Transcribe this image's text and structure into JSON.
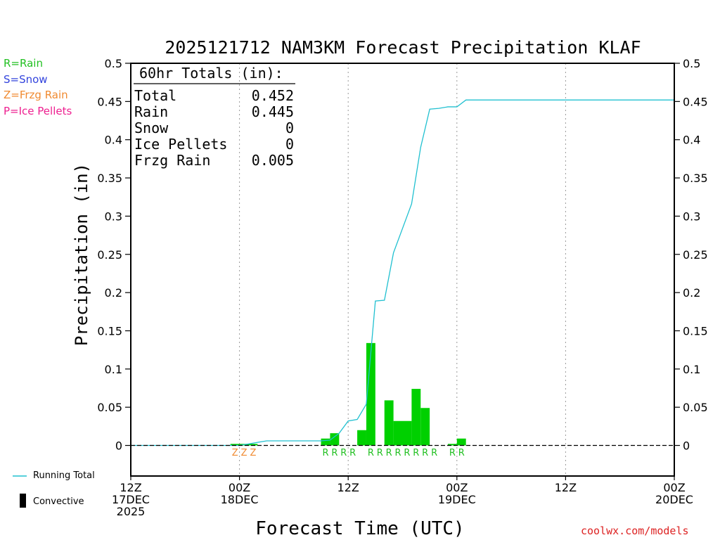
{
  "legend": {
    "rain": {
      "label": "R=Rain",
      "color": "#22c022"
    },
    "snow": {
      "label": "S=Snow",
      "color": "#3344dd"
    },
    "frzg": {
      "label": "Z=Frzg Rain",
      "color": "#f08a30"
    },
    "ice": {
      "label": "P=Ice Pellets",
      "color": "#ee2090"
    }
  },
  "key": {
    "running_total": {
      "label": "Running Total",
      "color": "#20c0d0"
    },
    "convective": {
      "label": "Convective",
      "color": "#000000"
    }
  },
  "credit": "coolwx.com/models",
  "chart_data": {
    "type": "bar",
    "title": "2025121712 NAM3KM Forecast Precipitation KLAF",
    "xlabel": "Forecast Time (UTC)",
    "ylabel": "Precipitation (in)",
    "ylim": [
      -0.04,
      0.5
    ],
    "yticks": [
      0,
      0.05,
      0.1,
      0.15,
      0.2,
      0.25,
      0.3,
      0.35,
      0.4,
      0.45,
      0.5
    ],
    "ytick_labels": [
      "0",
      "0.05",
      "0.1",
      "0.15",
      "0.2",
      "0.25",
      "0.3",
      "0.35",
      "0.4",
      "0.45",
      "0.5"
    ],
    "xlim_hours": [
      0,
      60
    ],
    "xticks": [
      {
        "hour": 0,
        "lines": [
          "12Z",
          "17DEC",
          "2025"
        ]
      },
      {
        "hour": 12,
        "lines": [
          "00Z",
          "18DEC"
        ]
      },
      {
        "hour": 24,
        "lines": [
          "12Z"
        ]
      },
      {
        "hour": 36,
        "lines": [
          "00Z",
          "19DEC"
        ]
      },
      {
        "hour": 48,
        "lines": [
          "12Z"
        ]
      },
      {
        "hour": 60,
        "lines": [
          "00Z",
          "20DEC"
        ]
      }
    ],
    "grid": "vertical dotted at 12-hour marks",
    "totals_box": {
      "header": "60hr Totals (in):",
      "rows": [
        {
          "label": "Total",
          "value": "0.452"
        },
        {
          "label": "Rain",
          "value": "0.445"
        },
        {
          "label": "Snow",
          "value": "0"
        },
        {
          "label": "Ice Pellets",
          "value": "0"
        },
        {
          "label": "Frzg Rain",
          "value": "0.005"
        }
      ]
    },
    "bars": [
      {
        "hour": 12,
        "value": 0.002
      },
      {
        "hour": 13,
        "value": 0.002
      },
      {
        "hour": 14,
        "value": 0.002
      },
      {
        "hour": 22,
        "value": 0.009
      },
      {
        "hour": 23,
        "value": 0.016
      },
      {
        "hour": 26,
        "value": 0.02
      },
      {
        "hour": 27,
        "value": 0.134
      },
      {
        "hour": 29,
        "value": 0.059
      },
      {
        "hour": 30,
        "value": 0.032
      },
      {
        "hour": 31,
        "value": 0.032
      },
      {
        "hour": 32,
        "value": 0.074
      },
      {
        "hour": 33,
        "value": 0.049
      },
      {
        "hour": 36,
        "value": 0.002
      },
      {
        "hour": 37,
        "value": 0.009
      }
    ],
    "running_total": {
      "name": "Running Total",
      "x": [
        0,
        12,
        13,
        14,
        15,
        21,
        22,
        23,
        24,
        25,
        26,
        27,
        28,
        29,
        30,
        31,
        32,
        33,
        34,
        35,
        36,
        37,
        40,
        43,
        60
      ],
      "y": [
        0,
        0,
        0.002,
        0.004,
        0.006,
        0.006,
        0.007,
        0.016,
        0.032,
        0.034,
        0.054,
        0.189,
        0.19,
        0.252,
        0.284,
        0.316,
        0.39,
        0.44,
        0.441,
        0.443,
        0.443,
        0.452,
        0.452,
        0.452,
        0.452
      ]
    },
    "type_labels": [
      {
        "hour": 12,
        "text": "Z",
        "kind": "frzg"
      },
      {
        "hour": 13,
        "text": "Z",
        "kind": "frzg"
      },
      {
        "hour": 14,
        "text": "Z",
        "kind": "frzg"
      },
      {
        "hour": 22,
        "text": "R",
        "kind": "rain"
      },
      {
        "hour": 23,
        "text": "R",
        "kind": "rain"
      },
      {
        "hour": 24,
        "text": "R",
        "kind": "rain"
      },
      {
        "hour": 25,
        "text": "R",
        "kind": "rain"
      },
      {
        "hour": 27,
        "text": "R",
        "kind": "rain"
      },
      {
        "hour": 28,
        "text": "R",
        "kind": "rain"
      },
      {
        "hour": 29,
        "text": "R",
        "kind": "rain"
      },
      {
        "hour": 30,
        "text": "R",
        "kind": "rain"
      },
      {
        "hour": 31,
        "text": "R",
        "kind": "rain"
      },
      {
        "hour": 32,
        "text": "R",
        "kind": "rain"
      },
      {
        "hour": 33,
        "text": "R",
        "kind": "rain"
      },
      {
        "hour": 34,
        "text": "R",
        "kind": "rain"
      },
      {
        "hour": 36,
        "text": "R",
        "kind": "rain"
      },
      {
        "hour": 37,
        "text": "R",
        "kind": "rain"
      }
    ]
  }
}
